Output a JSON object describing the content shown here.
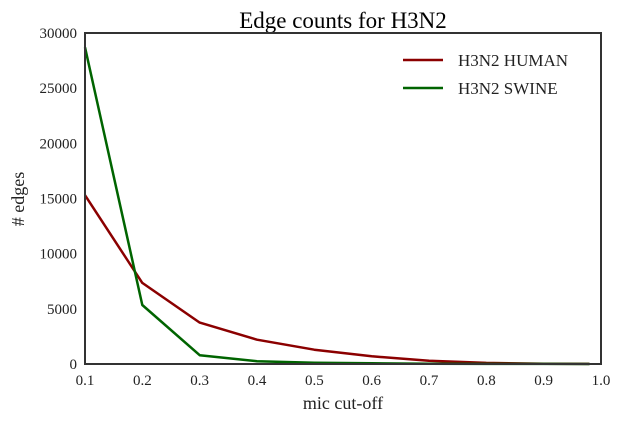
{
  "chart_data": {
    "type": "line",
    "title": "Edge counts for H3N2",
    "xlabel": "mic cut-off",
    "ylabel": "# edges",
    "xlim": [
      0.1,
      1.0
    ],
    "ylim": [
      0,
      30000
    ],
    "grid": false,
    "legend_position": "upper right",
    "x": [
      0.1,
      0.2,
      0.3,
      0.4,
      0.5,
      0.6,
      0.7,
      0.8,
      0.9,
      0.98
    ],
    "xticks": [
      "0.1",
      "0.2",
      "0.3",
      "0.4",
      "0.5",
      "0.6",
      "0.7",
      "0.8",
      "0.9",
      "1.0"
    ],
    "yticks": [
      "0",
      "5000",
      "10000",
      "15000",
      "20000",
      "25000",
      "30000"
    ],
    "series": [
      {
        "name": "H3N2 HUMAN",
        "color": "#8b0000",
        "values": [
          15300,
          7350,
          3750,
          2200,
          1300,
          700,
          300,
          100,
          30,
          5
        ]
      },
      {
        "name": "H3N2 SWINE",
        "color": "#006400",
        "values": [
          28700,
          5350,
          800,
          250,
          120,
          60,
          30,
          10,
          5,
          2
        ]
      }
    ]
  }
}
